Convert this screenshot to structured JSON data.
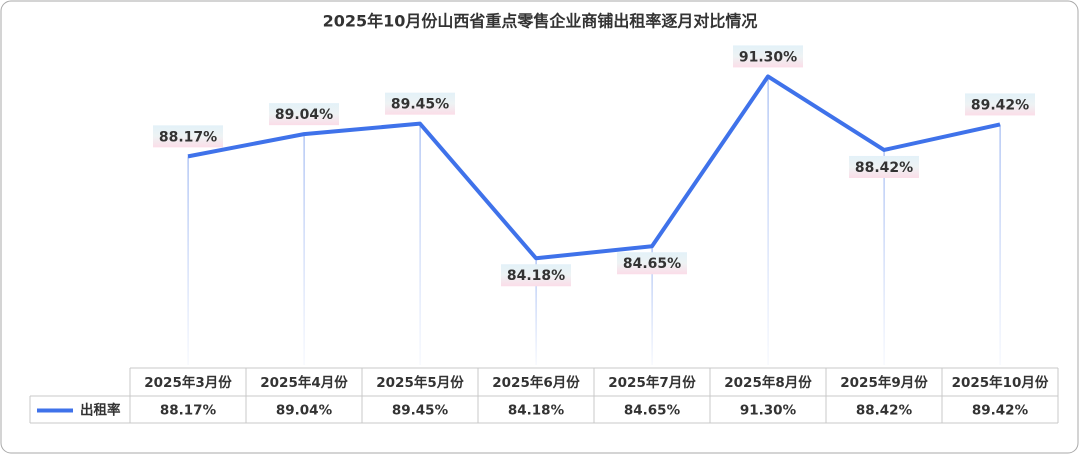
{
  "chart_data": {
    "type": "line",
    "title": "2025年10月份山西省重点零售企业商铺出租率逐月对比情况",
    "categories": [
      "2025年3月份",
      "2025年4月份",
      "2025年5月份",
      "2025年6月份",
      "2025年7月份",
      "2025年8月份",
      "2025年9月份",
      "2025年10月份"
    ],
    "series": [
      {
        "name": "出租率",
        "color": "#3f72ea",
        "values": [
          88.17,
          89.04,
          89.45,
          84.18,
          84.65,
          91.3,
          88.42,
          89.42
        ],
        "value_labels": [
          "88.17%",
          "89.04%",
          "89.45%",
          "84.18%",
          "84.65%",
          "91.30%",
          "88.42%",
          "89.42%"
        ]
      }
    ],
    "ylim": [
      80,
      93
    ]
  }
}
